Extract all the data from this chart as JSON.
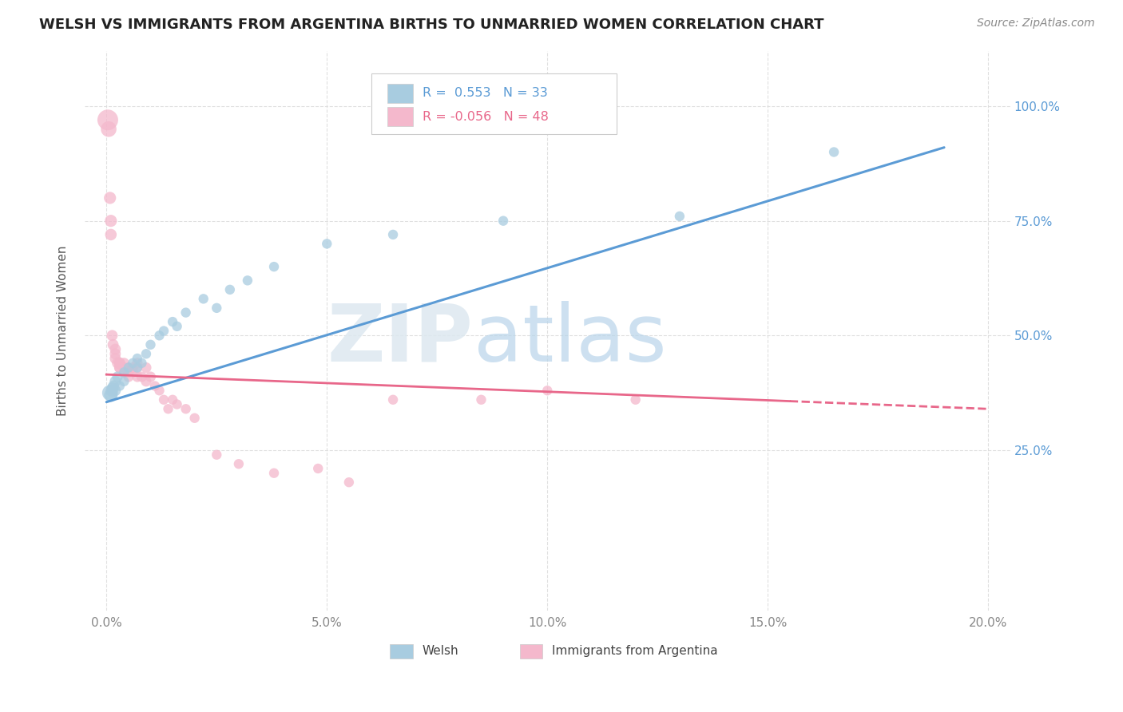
{
  "title": "WELSH VS IMMIGRANTS FROM ARGENTINA BIRTHS TO UNMARRIED WOMEN CORRELATION CHART",
  "source": "Source: ZipAtlas.com",
  "ylabel": "Births to Unmarried Women",
  "xlabel_welsh": "Welsh",
  "xlabel_argentina": "Immigrants from Argentina",
  "xtick_vals": [
    0.0,
    0.05,
    0.1,
    0.15,
    0.2
  ],
  "xtick_labels": [
    "0.0%",
    "5.0%",
    "10.0%",
    "15.0%",
    "20.0%"
  ],
  "ytick_vals": [
    0.25,
    0.5,
    0.75,
    1.0
  ],
  "ytick_labels": [
    "25.0%",
    "50.0%",
    "75.0%",
    "100.0%"
  ],
  "xlim": [
    -0.005,
    0.205
  ],
  "ylim": [
    -0.1,
    1.12
  ],
  "welsh_R": 0.553,
  "welsh_N": 33,
  "argentina_R": -0.056,
  "argentina_N": 48,
  "welsh_dot_color": "#a8cce0",
  "argentina_dot_color": "#f4b8cc",
  "welsh_line_color": "#5b9bd5",
  "argentina_line_color": "#e8678a",
  "legend_border_color": "#cccccc",
  "grid_color": "#dddddd",
  "title_color": "#222222",
  "source_color": "#888888",
  "ylabel_color": "#555555",
  "tick_color": "#888888",
  "watermark_zip_color": "#dce8f0",
  "watermark_atlas_color": "#d0e4f4",
  "welsh_x": [
    0.0008,
    0.001,
    0.0012,
    0.0014,
    0.0016,
    0.002,
    0.002,
    0.0025,
    0.003,
    0.004,
    0.004,
    0.005,
    0.006,
    0.007,
    0.007,
    0.008,
    0.009,
    0.01,
    0.012,
    0.013,
    0.015,
    0.016,
    0.018,
    0.022,
    0.025,
    0.028,
    0.032,
    0.038,
    0.05,
    0.065,
    0.09,
    0.13,
    0.165
  ],
  "welsh_y": [
    0.375,
    0.37,
    0.38,
    0.385,
    0.39,
    0.38,
    0.4,
    0.41,
    0.39,
    0.4,
    0.42,
    0.43,
    0.44,
    0.43,
    0.45,
    0.44,
    0.46,
    0.48,
    0.5,
    0.51,
    0.53,
    0.52,
    0.55,
    0.58,
    0.56,
    0.6,
    0.62,
    0.65,
    0.7,
    0.72,
    0.75,
    0.76,
    0.9
  ],
  "welsh_sizes": [
    200,
    150,
    120,
    110,
    100,
    100,
    100,
    90,
    80,
    80,
    80,
    80,
    80,
    80,
    80,
    80,
    80,
    80,
    80,
    80,
    80,
    80,
    80,
    80,
    80,
    80,
    80,
    80,
    80,
    80,
    80,
    80,
    80
  ],
  "argentina_x": [
    0.0003,
    0.0005,
    0.0008,
    0.001,
    0.001,
    0.0013,
    0.0015,
    0.002,
    0.002,
    0.002,
    0.0025,
    0.003,
    0.003,
    0.003,
    0.003,
    0.004,
    0.004,
    0.004,
    0.005,
    0.005,
    0.005,
    0.005,
    0.006,
    0.006,
    0.007,
    0.007,
    0.007,
    0.008,
    0.009,
    0.009,
    0.01,
    0.011,
    0.012,
    0.013,
    0.014,
    0.015,
    0.016,
    0.018,
    0.02,
    0.025,
    0.03,
    0.038,
    0.048,
    0.055,
    0.065,
    0.085,
    0.1,
    0.12
  ],
  "argentina_y": [
    0.97,
    0.95,
    0.8,
    0.75,
    0.72,
    0.5,
    0.48,
    0.45,
    0.46,
    0.47,
    0.44,
    0.43,
    0.44,
    0.43,
    0.44,
    0.42,
    0.44,
    0.43,
    0.42,
    0.43,
    0.41,
    0.42,
    0.42,
    0.43,
    0.41,
    0.43,
    0.44,
    0.41,
    0.4,
    0.43,
    0.41,
    0.39,
    0.38,
    0.36,
    0.34,
    0.36,
    0.35,
    0.34,
    0.32,
    0.24,
    0.22,
    0.2,
    0.21,
    0.18,
    0.36,
    0.36,
    0.38,
    0.36
  ],
  "argentina_sizes": [
    350,
    200,
    120,
    120,
    110,
    100,
    100,
    100,
    100,
    100,
    100,
    100,
    100,
    100,
    100,
    90,
    90,
    90,
    90,
    90,
    90,
    90,
    90,
    90,
    90,
    90,
    90,
    90,
    90,
    90,
    90,
    80,
    80,
    80,
    80,
    80,
    80,
    80,
    80,
    80,
    80,
    80,
    80,
    80,
    80,
    80,
    80,
    80
  ],
  "welsh_line_x": [
    0.0,
    0.19
  ],
  "welsh_line_y": [
    0.355,
    0.91
  ],
  "argentina_line_x": [
    0.0,
    0.2
  ],
  "argentina_line_y": [
    0.415,
    0.34
  ]
}
